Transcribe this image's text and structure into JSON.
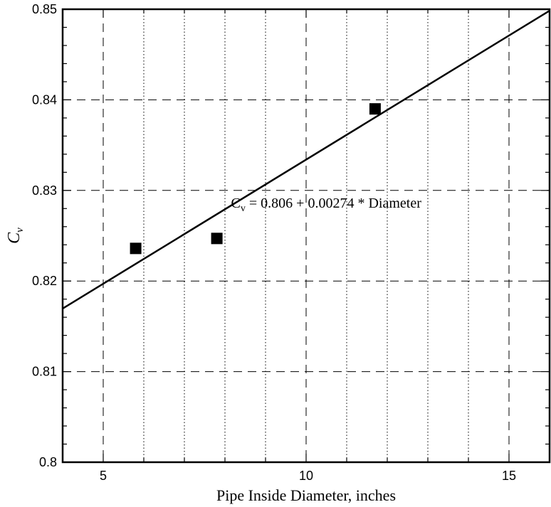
{
  "chart_data": {
    "type": "scatter",
    "xlabel": "Pipe Inside Diameter, inches",
    "ylabel": {
      "main": "C",
      "sub": "v"
    },
    "xlim": [
      4,
      16
    ],
    "ylim": [
      0.8,
      0.85
    ],
    "x_ticks": [
      5,
      10,
      15
    ],
    "x_tick_labels": [
      "5",
      "10",
      "15"
    ],
    "y_ticks": [
      0.8,
      0.81,
      0.82,
      0.83,
      0.84,
      0.85
    ],
    "y_tick_labels": [
      "0.8",
      "0.81",
      "0.82",
      "0.83",
      "0.84",
      "0.85"
    ],
    "grid_major_x": [
      5,
      10,
      15
    ],
    "grid_minor_x": [
      6,
      7,
      8,
      9,
      11,
      12,
      13,
      14
    ],
    "grid_major_y": [
      0.81,
      0.82,
      0.83,
      0.84
    ],
    "points": [
      {
        "x": 5.8,
        "y": 0.8236
      },
      {
        "x": 7.8,
        "y": 0.8247
      },
      {
        "x": 11.7,
        "y": 0.839
      }
    ],
    "fit_line": {
      "intercept": 0.806,
      "slope": 0.00274
    },
    "annotation": {
      "main": "C",
      "sub": "v",
      "rest": " = 0.806 + 0.00274 * Diameter",
      "x": 8.15,
      "y": 0.8281
    },
    "grid": true,
    "legend": "none"
  }
}
